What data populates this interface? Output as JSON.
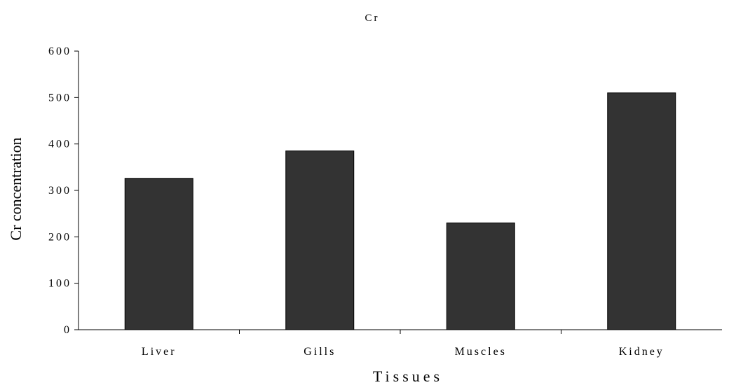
{
  "chart_data": {
    "type": "bar",
    "title": "Cr",
    "xlabel": "Tissues",
    "ylabel": "Cr concentration",
    "categories": [
      "Liver",
      "Gills",
      "Muscles",
      "Kidney"
    ],
    "values": [
      326,
      385,
      230,
      510
    ],
    "ylim": [
      0,
      600
    ],
    "yticks": [
      0,
      100,
      200,
      300,
      400,
      500,
      600
    ],
    "ytick_labels": [
      "0",
      "100",
      "200",
      "300",
      "400",
      "500",
      "600"
    ],
    "grid": false,
    "legend": "none",
    "bar_color": "#333333"
  }
}
